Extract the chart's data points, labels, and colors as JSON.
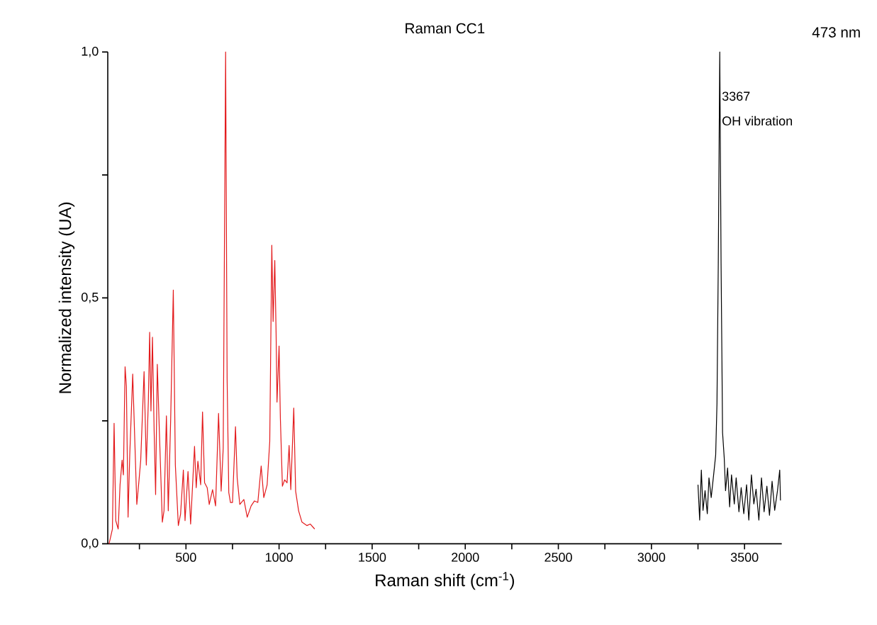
{
  "chart_data": {
    "type": "line",
    "title": "Raman CC1",
    "xlabel": "Raman shift (cm$^{-1}$)",
    "ylabel": "Normalized intensity (UA)",
    "annotations": [
      {
        "text": "3367",
        "x": 3367,
        "y": 0.91
      },
      {
        "text": "OH vibration",
        "x": 3367,
        "y": 0.86
      },
      "473 nm"
    ],
    "xlim": [
      80,
      3700
    ],
    "ylim": [
      0,
      1.0
    ],
    "xticks": [
      {
        "value": 250,
        "label": null
      },
      500,
      {
        "value": 750,
        "label": null
      },
      1000,
      {
        "value": 1250,
        "label": null
      },
      1500,
      {
        "value": 1750,
        "label": null
      },
      2000,
      {
        "value": 2250,
        "label": null
      },
      2500,
      {
        "value": 2750,
        "label": null
      },
      3000,
      {
        "value": 3250,
        "label": null
      },
      3500
    ],
    "yticks": [
      {
        "value": 0,
        "label": "0,0"
      },
      {
        "value": 0.25,
        "label": null
      },
      {
        "value": 0.5,
        "label": "0,5"
      },
      {
        "value": 0.75,
        "label": null
      },
      {
        "value": 1.0,
        "label": "1,0"
      }
    ],
    "grid": false,
    "marker": "none",
    "line_style": "solid",
    "series": [
      {
        "color": "#e31a1c",
        "x": [
          87,
          105,
          114,
          123,
          136,
          146,
          157,
          164,
          173,
          180,
          189,
          198,
          214,
          221,
          236,
          248,
          257,
          275,
          287,
          298,
          305,
          312,
          320,
          329,
          337,
          346,
          357,
          373,
          382,
          395,
          405,
          418,
          432,
          443,
          459,
          471,
          486,
          495,
          511,
          525,
          546,
          555,
          564,
          579,
          589,
          600,
          614,
          625,
          643,
          659,
          675,
          689,
          700,
          713,
          721,
          730,
          739,
          750,
          766,
          775,
          789,
          811,
          829,
          850,
          868,
          886,
          904,
          918,
          936,
          950,
          961,
          968,
          977,
          984,
          989,
          1000,
          1007,
          1018,
          1030,
          1043,
          1054,
          1063,
          1079,
          1089,
          1105,
          1123,
          1150,
          1168,
          1191
        ],
        "values": [
          0,
          0.03,
          0.245,
          0.047,
          0.03,
          0.12,
          0.17,
          0.14,
          0.36,
          0.32,
          0.054,
          0.18,
          0.345,
          0.26,
          0.08,
          0.13,
          0.17,
          0.35,
          0.16,
          0.29,
          0.43,
          0.27,
          0.42,
          0.23,
          0.1,
          0.365,
          0.23,
          0.044,
          0.067,
          0.26,
          0.067,
          0.255,
          0.516,
          0.16,
          0.037,
          0.06,
          0.15,
          0.047,
          0.147,
          0.04,
          0.198,
          0.114,
          0.168,
          0.12,
          0.268,
          0.124,
          0.114,
          0.08,
          0.11,
          0.077,
          0.265,
          0.107,
          0.194,
          1.0,
          0.335,
          0.104,
          0.084,
          0.084,
          0.238,
          0.134,
          0.08,
          0.09,
          0.054,
          0.077,
          0.087,
          0.084,
          0.158,
          0.094,
          0.12,
          0.208,
          0.607,
          0.452,
          0.576,
          0.43,
          0.288,
          0.402,
          0.255,
          0.117,
          0.13,
          0.124,
          0.2,
          0.11,
          0.276,
          0.107,
          0.067,
          0.044,
          0.037,
          0.04,
          0.03
        ]
      },
      {
        "color": "#000000",
        "x": [
          3250,
          3259,
          3268,
          3277,
          3288,
          3300,
          3309,
          3321,
          3334,
          3345,
          3352,
          3359,
          3367,
          3374,
          3382,
          3391,
          3398,
          3409,
          3420,
          3430,
          3445,
          3455,
          3470,
          3482,
          3496,
          3511,
          3523,
          3537,
          3550,
          3562,
          3577,
          3591,
          3605,
          3620,
          3634,
          3648,
          3662,
          3677,
          3689,
          3693
        ],
        "values": [
          0.12,
          0.048,
          0.15,
          0.068,
          0.108,
          0.061,
          0.134,
          0.094,
          0.14,
          0.18,
          0.286,
          0.57,
          1.0,
          0.57,
          0.226,
          0.174,
          0.108,
          0.154,
          0.075,
          0.14,
          0.081,
          0.134,
          0.065,
          0.114,
          0.061,
          0.12,
          0.048,
          0.14,
          0.081,
          0.111,
          0.048,
          0.134,
          0.065,
          0.117,
          0.058,
          0.127,
          0.068,
          0.108,
          0.15,
          0.088
        ]
      }
    ]
  }
}
